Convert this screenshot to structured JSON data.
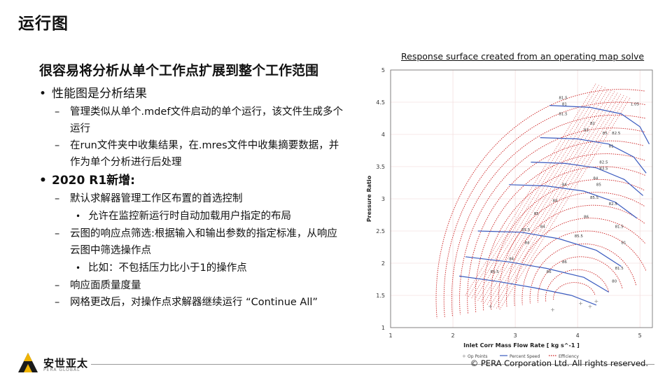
{
  "slide": {
    "title": "运行图",
    "headline": "很容易将分析从单个工作点扩展到整个工作范围",
    "bullets": {
      "b1": "性能图是分析结果",
      "b1_sub1": "管理类似从单个.mdef文件启动的单个运行，该文件生成多个运行",
      "b1_sub2": "在run文件夹中收集结果，在.mres文件中收集摘要数据，并作为单个分析进行后处理",
      "b2": "2020 R1新增:",
      "b2_sub1": "默认求解器管理工作区布置的首选控制",
      "b2_sub1_item": "允许在监控新运行时自动加载用户指定的布局",
      "b2_sub2": "云图的响应点筛选:根据输入和输出参数的指定标准，从响应云图中筛选操作点",
      "b2_sub2_item": "比如：不包括压力比小于1的操作点",
      "b2_sub3": "响应面质量度量",
      "b2_sub4": "网格更改后，对操作点求解器继续运行 “Continue All”"
    }
  },
  "chart_caption": "Response surface created from an operating map solve",
  "chart_data": {
    "type": "scatter",
    "xlabel": "Inlet Corr Mass Flow Rate [ kg s^-1 ]",
    "ylabel": "Pressure Ratio",
    "xlim": [
      1,
      5.2
    ],
    "ylim": [
      1,
      5
    ],
    "xticks": [
      "1",
      "2",
      "3",
      "4",
      "5"
    ],
    "yticks": [
      "1",
      "1.5",
      "2",
      "2.5",
      "3",
      "3.5",
      "4",
      "4.5",
      "5"
    ],
    "legend": [
      "Op Points",
      "Percent Speed",
      "Efficiency"
    ],
    "legend_position": "bottom",
    "colors": {
      "efficiency": "#cc1f1f",
      "speed": "#3a5bbf",
      "op_points": "#888888"
    },
    "efficiency_labels": [
      "85.5",
      "84",
      "84",
      "84",
      "84",
      "84",
      "85.5",
      "85",
      "86",
      "86",
      "85.5",
      "86",
      "85.5",
      "84",
      "82.5",
      "81",
      "81",
      "81.5",
      "83.5",
      "82.5",
      "82",
      "81.5",
      "81.5",
      "85",
      "81",
      "83",
      "85",
      "82.5",
      "81.5",
      "80",
      "1.05"
    ],
    "speed_lines": [
      {
        "x": [
          2.1,
          2.7,
          3.3,
          3.9,
          4.3
        ],
        "y": [
          1.8,
          1.72,
          1.62,
          1.5,
          1.35
        ]
      },
      {
        "x": [
          2.2,
          2.9,
          3.5,
          4.1,
          4.5
        ],
        "y": [
          2.1,
          2.02,
          1.92,
          1.78,
          1.55
        ]
      },
      {
        "x": [
          2.4,
          3.1,
          3.7,
          4.3,
          4.7
        ],
        "y": [
          2.5,
          2.48,
          2.38,
          2.2,
          1.95
        ]
      },
      {
        "x": [
          2.9,
          3.5,
          4.1,
          4.6,
          4.95
        ],
        "y": [
          3.22,
          3.2,
          3.12,
          2.95,
          2.7
        ]
      },
      {
        "x": [
          3.25,
          3.8,
          4.3,
          4.75,
          5.05
        ],
        "y": [
          3.57,
          3.55,
          3.48,
          3.3,
          3.05
        ]
      },
      {
        "x": [
          3.4,
          4.0,
          4.5,
          4.9,
          5.1
        ],
        "y": [
          3.95,
          3.93,
          3.85,
          3.65,
          3.4
        ]
      },
      {
        "x": [
          3.55,
          4.2,
          4.7,
          5.0,
          5.15
        ],
        "y": [
          4.45,
          4.42,
          4.32,
          4.12,
          3.85
        ]
      }
    ]
  },
  "footer": {
    "logo_text": "安世亚太",
    "logo_sub": "PERA GLOBAL",
    "copyright": "© PERA Corporation Ltd. All rights reserved."
  }
}
